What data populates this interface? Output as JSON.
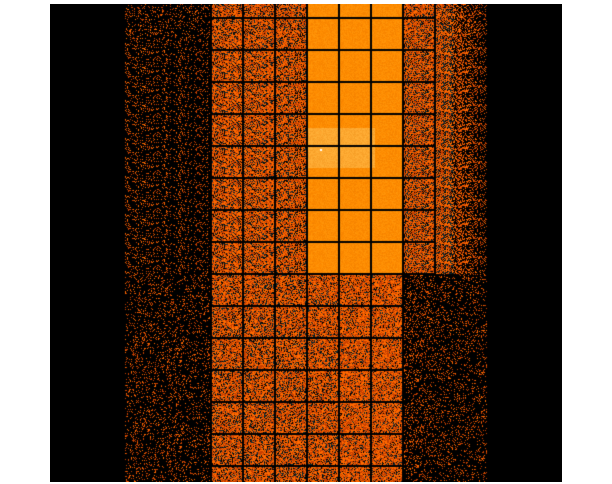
{
  "image": {
    "kind": "x-ray detector count image",
    "colormap": {
      "background": "#000000",
      "low": "#c84000",
      "mid": "#ff6a00",
      "high": "#ff8c00",
      "peak": "#ffa830",
      "source": "#ffffff",
      "speckle": "#0a2a30"
    },
    "grid_lines": "#000000"
  }
}
